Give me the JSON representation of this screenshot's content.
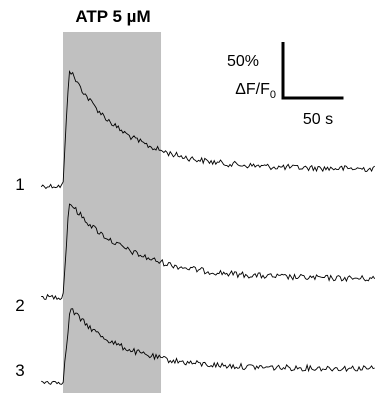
{
  "stimulus": {
    "label": "ATP 5 µM",
    "start_s": 0,
    "end_s": 81,
    "shade_color": "#c0c0c0"
  },
  "scale_bar": {
    "y_label_value": "50%",
    "y_label_unit": "ΔF/F",
    "y_label_sub": "0",
    "x_label": "50 s",
    "y_value_percent": 50,
    "x_value_s": 50
  },
  "chart_data": {
    "type": "line",
    "title": "ATP 5 µM",
    "x_unit": "s",
    "y_unit": "% ΔF/F0",
    "xlim": [
      -25,
      262
    ],
    "grid": false,
    "legend": "none",
    "series": [
      {
        "name": "1",
        "baseline_s": [
          -20,
          0
        ],
        "peak_percent": 105,
        "peak_time_s": 5,
        "decay_tau_s": 45,
        "plateau_percent": 15,
        "end_time_s": 258
      },
      {
        "name": "2",
        "baseline_s": [
          -20,
          0
        ],
        "peak_percent": 85,
        "peak_time_s": 5,
        "decay_tau_s": 50,
        "plateau_percent": 16,
        "end_time_s": 258
      },
      {
        "name": "3",
        "baseline_s": [
          -20,
          0
        ],
        "peak_percent": 66,
        "peak_time_s": 6,
        "decay_tau_s": 42,
        "plateau_percent": 12,
        "end_time_s": 258
      }
    ],
    "line_color": "#000000"
  }
}
